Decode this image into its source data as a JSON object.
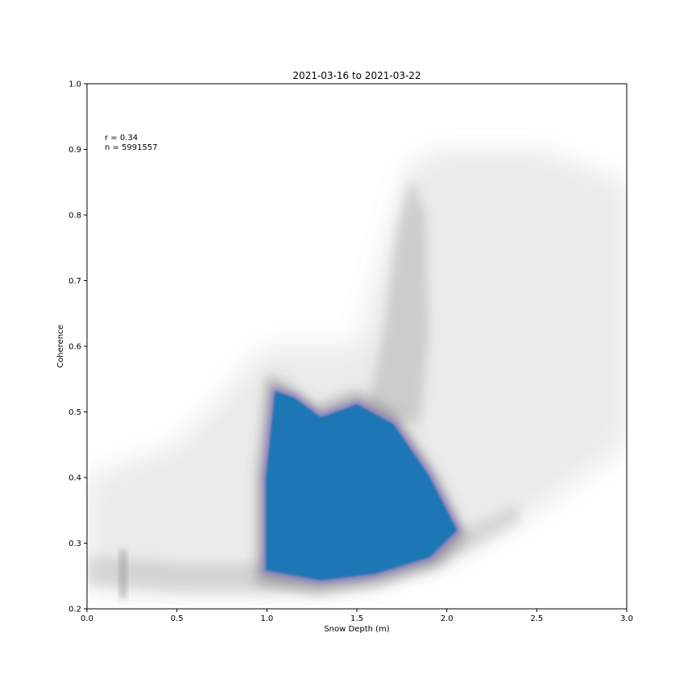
{
  "chart_data": {
    "type": "scatter",
    "title": "2021-03-16 to 2021-03-22",
    "xlabel": "Snow Depth (m)",
    "ylabel": "Coherence",
    "xlim": [
      0.0,
      3.0
    ],
    "ylim": [
      0.2,
      1.0
    ],
    "x_ticks": [
      "0.0",
      "0.5",
      "1.0",
      "1.5",
      "2.0",
      "2.5",
      "3.0"
    ],
    "y_ticks": [
      "0.2",
      "0.3",
      "0.4",
      "0.5",
      "0.6",
      "0.7",
      "0.8",
      "0.9",
      "1.0"
    ],
    "grid": false,
    "legend": "none",
    "annotations": {
      "r": "r = 0.34",
      "n": "n = 5991557"
    },
    "series": [
      {
        "color": "#808080",
        "density_outline": [
          [
            0.0,
            0.23
          ],
          [
            0.5,
            0.22
          ],
          [
            1.0,
            0.22
          ],
          [
            1.5,
            0.24
          ],
          [
            2.0,
            0.27
          ],
          [
            2.5,
            0.35
          ],
          [
            3.0,
            0.45
          ],
          [
            3.0,
            0.85
          ],
          [
            2.5,
            0.9
          ],
          [
            2.0,
            0.9
          ],
          [
            1.8,
            0.88
          ],
          [
            1.5,
            0.6
          ],
          [
            1.0,
            0.6
          ],
          [
            0.5,
            0.45
          ],
          [
            0.0,
            0.4
          ]
        ]
      },
      {
        "color": "#1f77b4",
        "density_outline": [
          [
            1.0,
            0.26
          ],
          [
            1.3,
            0.245
          ],
          [
            1.6,
            0.255
          ],
          [
            1.9,
            0.28
          ],
          [
            2.05,
            0.32
          ],
          [
            1.9,
            0.4
          ],
          [
            1.7,
            0.48
          ],
          [
            1.5,
            0.51
          ],
          [
            1.3,
            0.49
          ],
          [
            1.15,
            0.52
          ],
          [
            1.05,
            0.53
          ],
          [
            1.0,
            0.4
          ]
        ]
      }
    ]
  }
}
